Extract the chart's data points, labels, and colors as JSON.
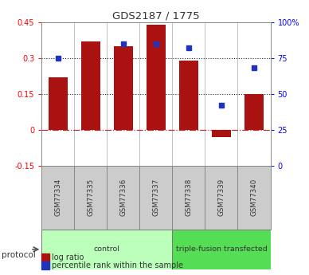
{
  "title": "GDS2187 / 1775",
  "samples": [
    "GSM77334",
    "GSM77335",
    "GSM77336",
    "GSM77337",
    "GSM77338",
    "GSM77339",
    "GSM77340"
  ],
  "log_ratio": [
    0.22,
    0.37,
    0.35,
    0.44,
    0.29,
    -0.03,
    0.15
  ],
  "percentile_rank": [
    75,
    null,
    85,
    85,
    82,
    42,
    68
  ],
  "bar_color": "#aa1111",
  "dot_color": "#2233bb",
  "protocol_groups": [
    {
      "label": "control",
      "start": 0,
      "end": 4,
      "color": "#bbffbb"
    },
    {
      "label": "triple-fusion transfected",
      "start": 4,
      "end": 7,
      "color": "#55dd55"
    }
  ],
  "left_yticks": [
    -0.15,
    0,
    0.15,
    0.3,
    0.45
  ],
  "right_yticks": [
    0,
    25,
    50,
    75,
    100
  ],
  "right_ytick_labels": [
    "0",
    "25",
    "50",
    "75",
    "100%"
  ],
  "hlines": [
    0.15,
    0.3
  ],
  "hline_zero_color": "#bb3333",
  "background_color": "#ffffff",
  "grid_color": "#333333",
  "label_bg": "#cccccc",
  "legend_labels": [
    "log ratio",
    "percentile rank within the sample"
  ]
}
